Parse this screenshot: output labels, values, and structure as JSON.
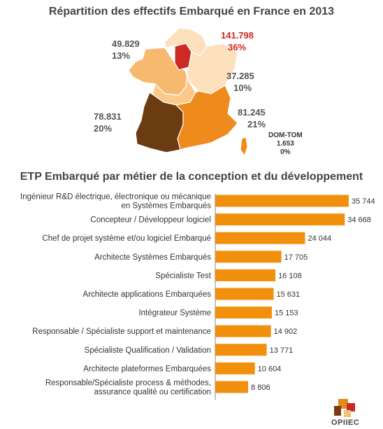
{
  "map": {
    "title": "Répartition des effectifs Embarqué en France en 2013",
    "regions": [
      {
        "id": "idf",
        "value": "141.798",
        "pct": "36%",
        "color": "#cc2a22",
        "label_color": "#cc2a22"
      },
      {
        "id": "ouest",
        "value": "49.829",
        "pct": "13%",
        "color": "#f7b870",
        "label_color": "#555555"
      },
      {
        "id": "est",
        "value": "37.285",
        "pct": "10%",
        "color": "#fde0bd",
        "label_color": "#555555"
      },
      {
        "id": "sudouest",
        "value": "78.831",
        "pct": "20%",
        "color": "#6b3b12",
        "label_color": "#555555"
      },
      {
        "id": "sudest",
        "value": "81.245",
        "pct": "21%",
        "color": "#ef8a1c",
        "label_color": "#555555"
      }
    ],
    "domtom": {
      "label": "DOM-TOM",
      "value": "1.653",
      "pct": "0%"
    }
  },
  "chart_data": {
    "type": "bar",
    "orientation": "horizontal",
    "title": "ETP Embarqué par métier de la conception et du développement",
    "bar_color": "#f0900c",
    "categories": [
      [
        "Ingénieur R&D électrique, électronique ou mécanique",
        "en Systèmes Embarqués"
      ],
      [
        "Concepteur / Développeur logiciel"
      ],
      [
        "Chef de projet système et/ou logiciel Embarqué"
      ],
      [
        "Architecte Systèmes Embarqués"
      ],
      [
        "Spécialiste Test"
      ],
      [
        "Architecte applications Embarquées"
      ],
      [
        "Intégrateur Système"
      ],
      [
        "Responsable / Spécialiste support et maintenance"
      ],
      [
        "Spécialiste Qualification / Validation"
      ],
      [
        "Architecte plateformes Embarquées"
      ],
      [
        "Responsable/Spécialiste process & méthodes,",
        "assurance qualité ou certification"
      ]
    ],
    "values": [
      35744,
      34668,
      24044,
      17705,
      16108,
      15631,
      15153,
      14902,
      13771,
      10604,
      8806
    ],
    "value_labels": [
      "35 744",
      "34 668",
      "24 044",
      "17 705",
      "16 108",
      "15 631",
      "15 153",
      "14 902",
      "13 771",
      "10 604",
      "8 806"
    ],
    "xlim": [
      0,
      35744
    ]
  },
  "logo": {
    "text": "OPIIEC"
  }
}
